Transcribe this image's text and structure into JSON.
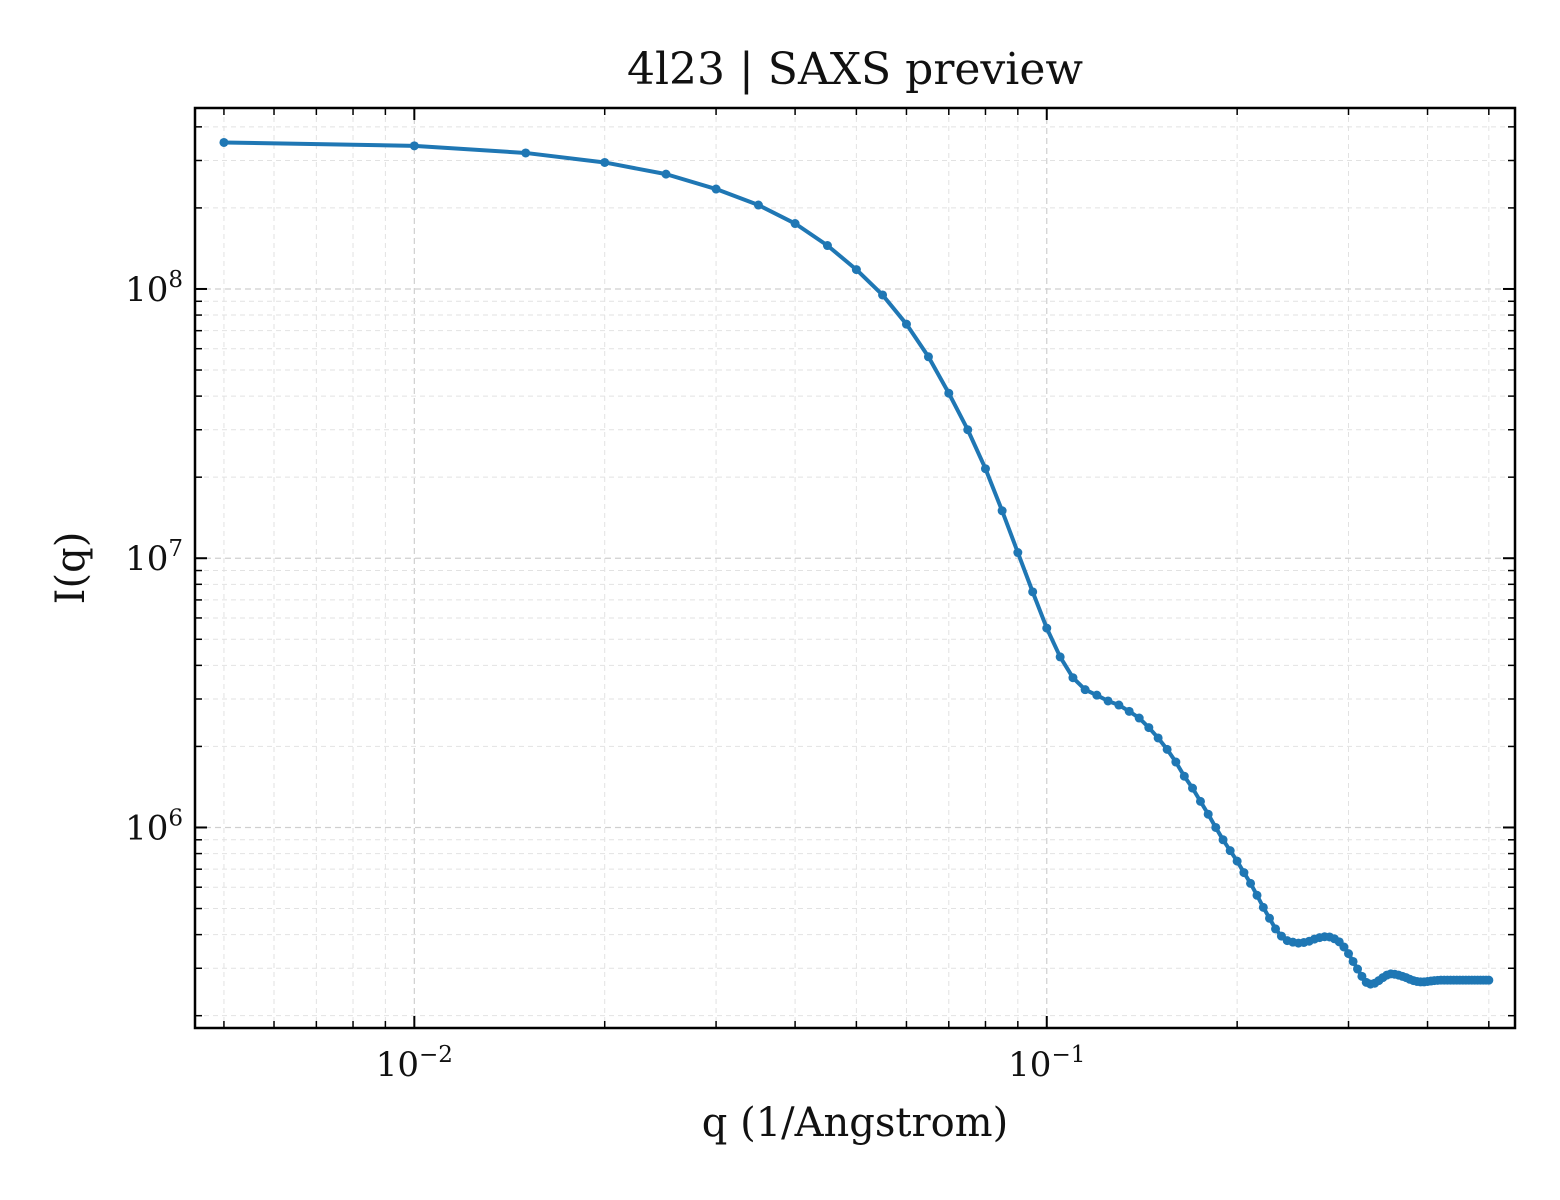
{
  "chart_data": {
    "type": "line",
    "title": "4l23 | SAXS preview",
    "xlabel": "q (1/Angstrom)",
    "ylabel": "I(q)",
    "xscale": "log",
    "yscale": "log",
    "xlim": [
      0.0045,
      0.55
    ],
    "ylim": [
      180000,
      470000000
    ],
    "grid": true,
    "x_tick_labels": [
      {
        "value": 0.01,
        "base": "10",
        "exp": "−2"
      },
      {
        "value": 0.1,
        "base": "10",
        "exp": "−1"
      }
    ],
    "y_tick_labels": [
      {
        "value": 1000000,
        "base": "10",
        "exp": "6"
      },
      {
        "value": 10000000,
        "base": "10",
        "exp": "7"
      },
      {
        "value": 100000000,
        "base": "10",
        "exp": "8"
      }
    ],
    "series": [
      {
        "color": "#1f77b4",
        "marker": "circle",
        "x": [
          0.005,
          0.01,
          0.015,
          0.02,
          0.025,
          0.03,
          0.035,
          0.04,
          0.045,
          0.05,
          0.055,
          0.06,
          0.065,
          0.07,
          0.075,
          0.08,
          0.085,
          0.09,
          0.095,
          0.1,
          0.105,
          0.11,
          0.115,
          0.12,
          0.125,
          0.13,
          0.135,
          0.14,
          0.145,
          0.15,
          0.155,
          0.16,
          0.165,
          0.17,
          0.175,
          0.18,
          0.185,
          0.19,
          0.195,
          0.2,
          0.205,
          0.21,
          0.215,
          0.22,
          0.225,
          0.23,
          0.235,
          0.24,
          0.245,
          0.25,
          0.255,
          0.26,
          0.265,
          0.27,
          0.275,
          0.28,
          0.285,
          0.29,
          0.295,
          0.3,
          0.305,
          0.31,
          0.315,
          0.32,
          0.325,
          0.33,
          0.335,
          0.34,
          0.345,
          0.35,
          0.355,
          0.36,
          0.365,
          0.37,
          0.375,
          0.38,
          0.385,
          0.39,
          0.395,
          0.4,
          0.405,
          0.41,
          0.415,
          0.42,
          0.425,
          0.43,
          0.435,
          0.44,
          0.445,
          0.45,
          0.455,
          0.46,
          0.465,
          0.47,
          0.475,
          0.48,
          0.485,
          0.49,
          0.495,
          0.5
        ],
        "y": [
          350000000,
          340000000,
          320000000,
          295000000,
          267000000,
          235000000,
          205000000,
          175000000,
          145000000,
          118000000,
          95000000,
          74000000,
          56000000,
          41000000,
          30000000,
          21500000,
          15000000,
          10500000,
          7500000,
          5500000,
          4300000,
          3600000,
          3250000,
          3100000,
          2950000,
          2850000,
          2700000,
          2550000,
          2350000,
          2150000,
          1950000,
          1750000,
          1550000,
          1400000,
          1250000,
          1120000,
          1000000,
          900000,
          820000,
          750000,
          680000,
          620000,
          560000,
          505000,
          460000,
          420000,
          395000,
          380000,
          375000,
          372000,
          374000,
          378000,
          385000,
          390000,
          393000,
          392000,
          386000,
          376000,
          360000,
          340000,
          318000,
          298000,
          280000,
          266000,
          262000,
          264000,
          270000,
          277000,
          283000,
          286000,
          285000,
          283000,
          280000,
          277000,
          273000,
          270000,
          268000,
          267000,
          267000,
          268000,
          269000,
          270000,
          270500,
          271000,
          271000,
          271000,
          271000,
          271000,
          271000,
          271000,
          271000,
          271000,
          271000,
          271000,
          271000,
          271000,
          271000,
          271000,
          271000,
          271000
        ]
      }
    ]
  }
}
